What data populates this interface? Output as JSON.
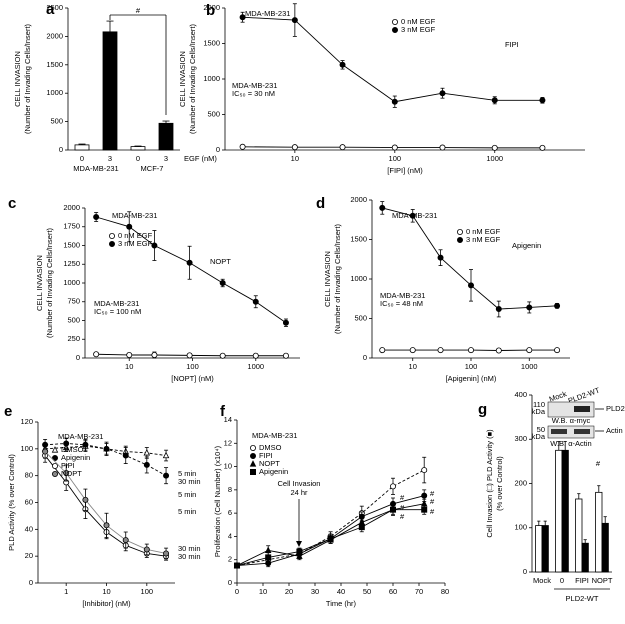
{
  "chart_data": [
    {
      "type": "bar",
      "label": "a",
      "ylabel": [
        "CELL INVASION",
        "(Number of Invading Cells/Insert)"
      ],
      "categories": [
        "0",
        "3",
        "0",
        "3"
      ],
      "values": [
        90,
        2080,
        60,
        470
      ],
      "errors": [
        15,
        190,
        10,
        40
      ],
      "colors": [
        "#ffffff",
        "#000000",
        "#ffffff",
        "#000000"
      ],
      "groups": [
        "MDA-MB-231",
        "MCF-7"
      ],
      "group_label": "EGF (nM)",
      "ylim": [
        0,
        2500
      ],
      "yticks": [
        0,
        500,
        1000,
        1500,
        2000,
        2500
      ],
      "annotations": [
        "#"
      ]
    },
    {
      "type": "scatter",
      "label": "b",
      "title": "MDA-MB-231",
      "ylabel": [
        "CELL INVASION",
        "(Number of Invading Cells/Insert)"
      ],
      "xlabel": "[FIPI] (nM)",
      "xlog": true,
      "xlim": [
        2,
        8000
      ],
      "xticks": [
        10,
        100,
        1000
      ],
      "ylim": [
        0,
        2000
      ],
      "yticks": [
        0,
        500,
        1000,
        1500,
        2000
      ],
      "x": [
        3,
        10,
        30,
        100,
        300,
        1000,
        3000
      ],
      "series": [
        {
          "name": "0 nM EGF",
          "color": "#000000",
          "filled": false,
          "marker": "o",
          "values": [
            45,
            40,
            40,
            35,
            35,
            30,
            30
          ],
          "errors": [
            10,
            10,
            10,
            10,
            10,
            10,
            10
          ]
        },
        {
          "name": "3 nM EGF",
          "color": "#000000",
          "filled": true,
          "marker": "o",
          "values": [
            1870,
            1830,
            1200,
            680,
            800,
            700,
            700
          ],
          "errors": [
            70,
            230,
            60,
            80,
            70,
            50,
            40
          ]
        }
      ],
      "annotations": [
        "MDA-MB-231",
        "IC₅₀ = 30 nM",
        "FIPI"
      ]
    },
    {
      "type": "scatter",
      "label": "c",
      "title": "MDA-MB-231",
      "ylabel": [
        "CELL INVASION",
        "(Number of Invading Cells/Insert)"
      ],
      "xlabel": "[NOPT] (nM)",
      "xlog": true,
      "xlim": [
        2,
        5000
      ],
      "xticks": [
        10,
        100,
        1000
      ],
      "ylim": [
        0,
        2000
      ],
      "yticks": [
        0,
        250,
        500,
        750,
        1000,
        1250,
        1500,
        1750,
        2000
      ],
      "x": [
        3,
        10,
        25,
        90,
        300,
        1000,
        3000
      ],
      "series": [
        {
          "name": "0 nM EGF",
          "color": "#000000",
          "filled": false,
          "marker": "o",
          "values": [
            50,
            40,
            40,
            35,
            30,
            30,
            30
          ],
          "errors": [
            10,
            10,
            40,
            20,
            10,
            10,
            10
          ]
        },
        {
          "name": "3 nM EGF",
          "color": "#000000",
          "filled": true,
          "marker": "o",
          "values": [
            1880,
            1750,
            1500,
            1270,
            1000,
            750,
            470
          ],
          "errors": [
            60,
            200,
            200,
            220,
            50,
            80,
            50
          ]
        }
      ],
      "annotations": [
        "MDA-MB-231",
        "IC₅₀ = 100 nM",
        "NOPT"
      ]
    },
    {
      "type": "scatter",
      "label": "d",
      "title": "MDA-MB-231",
      "ylabel": [
        "CELL INVASION",
        "(Number of Invading Cells/Insert)"
      ],
      "xlabel": "[Apigenin] (nM)",
      "xlog": true,
      "xlim": [
        2,
        5000
      ],
      "xticks": [
        10,
        100,
        1000
      ],
      "ylim": [
        0,
        2000
      ],
      "yticks": [
        0,
        500,
        1000,
        1500,
        2000
      ],
      "x": [
        3,
        10,
        30,
        100,
        300,
        1000,
        3000
      ],
      "series": [
        {
          "name": "0 nM EGF",
          "color": "#000000",
          "filled": false,
          "marker": "o",
          "values": [
            100,
            100,
            100,
            100,
            95,
            100,
            100
          ],
          "errors": [
            10,
            10,
            10,
            10,
            10,
            10,
            10
          ]
        },
        {
          "name": "3 nM EGF",
          "color": "#000000",
          "filled": true,
          "marker": "o",
          "values": [
            1900,
            1800,
            1270,
            920,
            620,
            640,
            660
          ],
          "errors": [
            80,
            80,
            100,
            200,
            100,
            70,
            30
          ]
        }
      ],
      "annotations": [
        "MDA-MB-231",
        "IC₅₀ = 48 nM",
        "Apigenin"
      ]
    },
    {
      "type": "scatter",
      "label": "e",
      "title": "MDA-MB-231",
      "ylabel": [
        "PLD Activity (% over Control)"
      ],
      "xlabel": "[Inhibitor] (nM)",
      "xlog": true,
      "xlim": [
        0.2,
        500
      ],
      "xticks": [
        1,
        10,
        100
      ],
      "ylim": [
        0,
        120
      ],
      "yticks": [
        0,
        20,
        40,
        60,
        80,
        100,
        120
      ],
      "x": [
        0.3,
        1,
        3,
        10,
        30,
        100,
        300
      ],
      "series": [
        {
          "name": "DMSO",
          "color": "#000000",
          "filled": false,
          "marker": "^",
          "dashed": true,
          "values": [
            100,
            101,
            102,
            100,
            98,
            97,
            95
          ],
          "errors": [
            3,
            3,
            4,
            4,
            4,
            4,
            4
          ]
        },
        {
          "name": "Apigenin",
          "color": "#000000",
          "filled": true,
          "marker": "o",
          "dashed": true,
          "values": [
            103,
            104,
            103,
            100,
            95,
            88,
            80
          ],
          "errors": [
            4,
            4,
            4,
            5,
            6,
            6,
            6
          ]
        },
        {
          "name": "FIPI",
          "color": "#000000",
          "filled": false,
          "marker": "o",
          "values": [
            95,
            75,
            55,
            38,
            28,
            22,
            20
          ],
          "errors": [
            5,
            6,
            7,
            5,
            4,
            3,
            3
          ]
        },
        {
          "name": "NOPT",
          "color": "#888888",
          "filled": true,
          "marker": "o",
          "values": [
            98,
            82,
            62,
            43,
            32,
            25,
            22
          ],
          "errors": [
            5,
            6,
            8,
            9,
            6,
            4,
            4
          ]
        }
      ],
      "annotations": [
        "5 min",
        "30 min",
        "5 min",
        "5 min",
        "30 min",
        "30 min"
      ]
    },
    {
      "type": "line",
      "label": "f",
      "title": "MDA-MB-231",
      "ylabel": [
        "Proliferation (Cell Number) (x10⁴)"
      ],
      "xlabel": "Time (hr)",
      "xlim": [
        0,
        80
      ],
      "xticks": [
        0,
        10,
        20,
        30,
        40,
        50,
        60,
        70,
        80
      ],
      "ylim": [
        0,
        14
      ],
      "yticks": [
        0,
        2,
        4,
        6,
        8,
        10,
        12,
        14
      ],
      "x": [
        0,
        12,
        24,
        36,
        48,
        60,
        72
      ],
      "series": [
        {
          "name": "DMSO",
          "color": "#000000",
          "filled": false,
          "marker": "o",
          "dashed": true,
          "values": [
            1.5,
            2,
            2.5,
            4,
            6,
            8.3,
            9.7
          ],
          "errors": [
            0.2,
            0.3,
            0.4,
            0.4,
            0.6,
            0.7,
            1.1
          ]
        },
        {
          "name": "FIPI",
          "color": "#000000",
          "filled": true,
          "marker": "o",
          "values": [
            1.5,
            1.7,
            2.5,
            3.8,
            5.7,
            6.8,
            7.5
          ],
          "errors": [
            0.2,
            0.3,
            0.3,
            0.4,
            0.4,
            0.5,
            0.5
          ]
        },
        {
          "name": "NOPT",
          "color": "#000000",
          "filled": true,
          "marker": "^",
          "values": [
            1.5,
            2.8,
            2.3,
            3.7,
            5.2,
            6.3,
            6.8
          ],
          "errors": [
            0.2,
            0.4,
            0.3,
            0.3,
            0.4,
            0.4,
            0.4
          ]
        },
        {
          "name": "Apigenin",
          "color": "#000000",
          "filled": true,
          "marker": "s",
          "values": [
            1.5,
            2.2,
            2.7,
            3.8,
            4.8,
            6.3,
            6.3
          ],
          "errors": [
            0.2,
            0.4,
            0.3,
            0.3,
            0.4,
            0.5,
            0.4
          ]
        }
      ],
      "annotations": [
        "Cell Invasion",
        "24 hr",
        "#",
        "#",
        "#",
        "#",
        "#",
        "#"
      ]
    },
    {
      "type": "bar",
      "label": "g",
      "ylabel": [
        "Cell Invasion (□) PLD Activity (■)",
        "(% over Control)"
      ],
      "categories": [
        "Mock",
        "0",
        "FIPI",
        "NOPT"
      ],
      "series": [
        {
          "color": "#ffffff",
          "values": [
            105,
            275,
            165,
            180
          ],
          "errors": [
            10,
            20,
            12,
            15
          ]
        },
        {
          "color": "#000000",
          "values": [
            105,
            275,
            65,
            110
          ],
          "errors": [
            10,
            20,
            8,
            15
          ]
        }
      ],
      "group_label": "PLD2-WT",
      "ylim": [
        0,
        400
      ],
      "yticks": [
        0,
        100,
        200,
        300,
        400
      ],
      "annotations": [
        "*",
        "#"
      ],
      "inset": {
        "lanes": [
          "Mock",
          "PLD2-WT"
        ],
        "sizes": [
          "110",
          "kDa",
          "50",
          "kDa"
        ],
        "bands": [
          "PLD2",
          "Actin"
        ],
        "blots": [
          "W.B. α-myc",
          "W.B. α-Actin"
        ]
      }
    }
  ]
}
